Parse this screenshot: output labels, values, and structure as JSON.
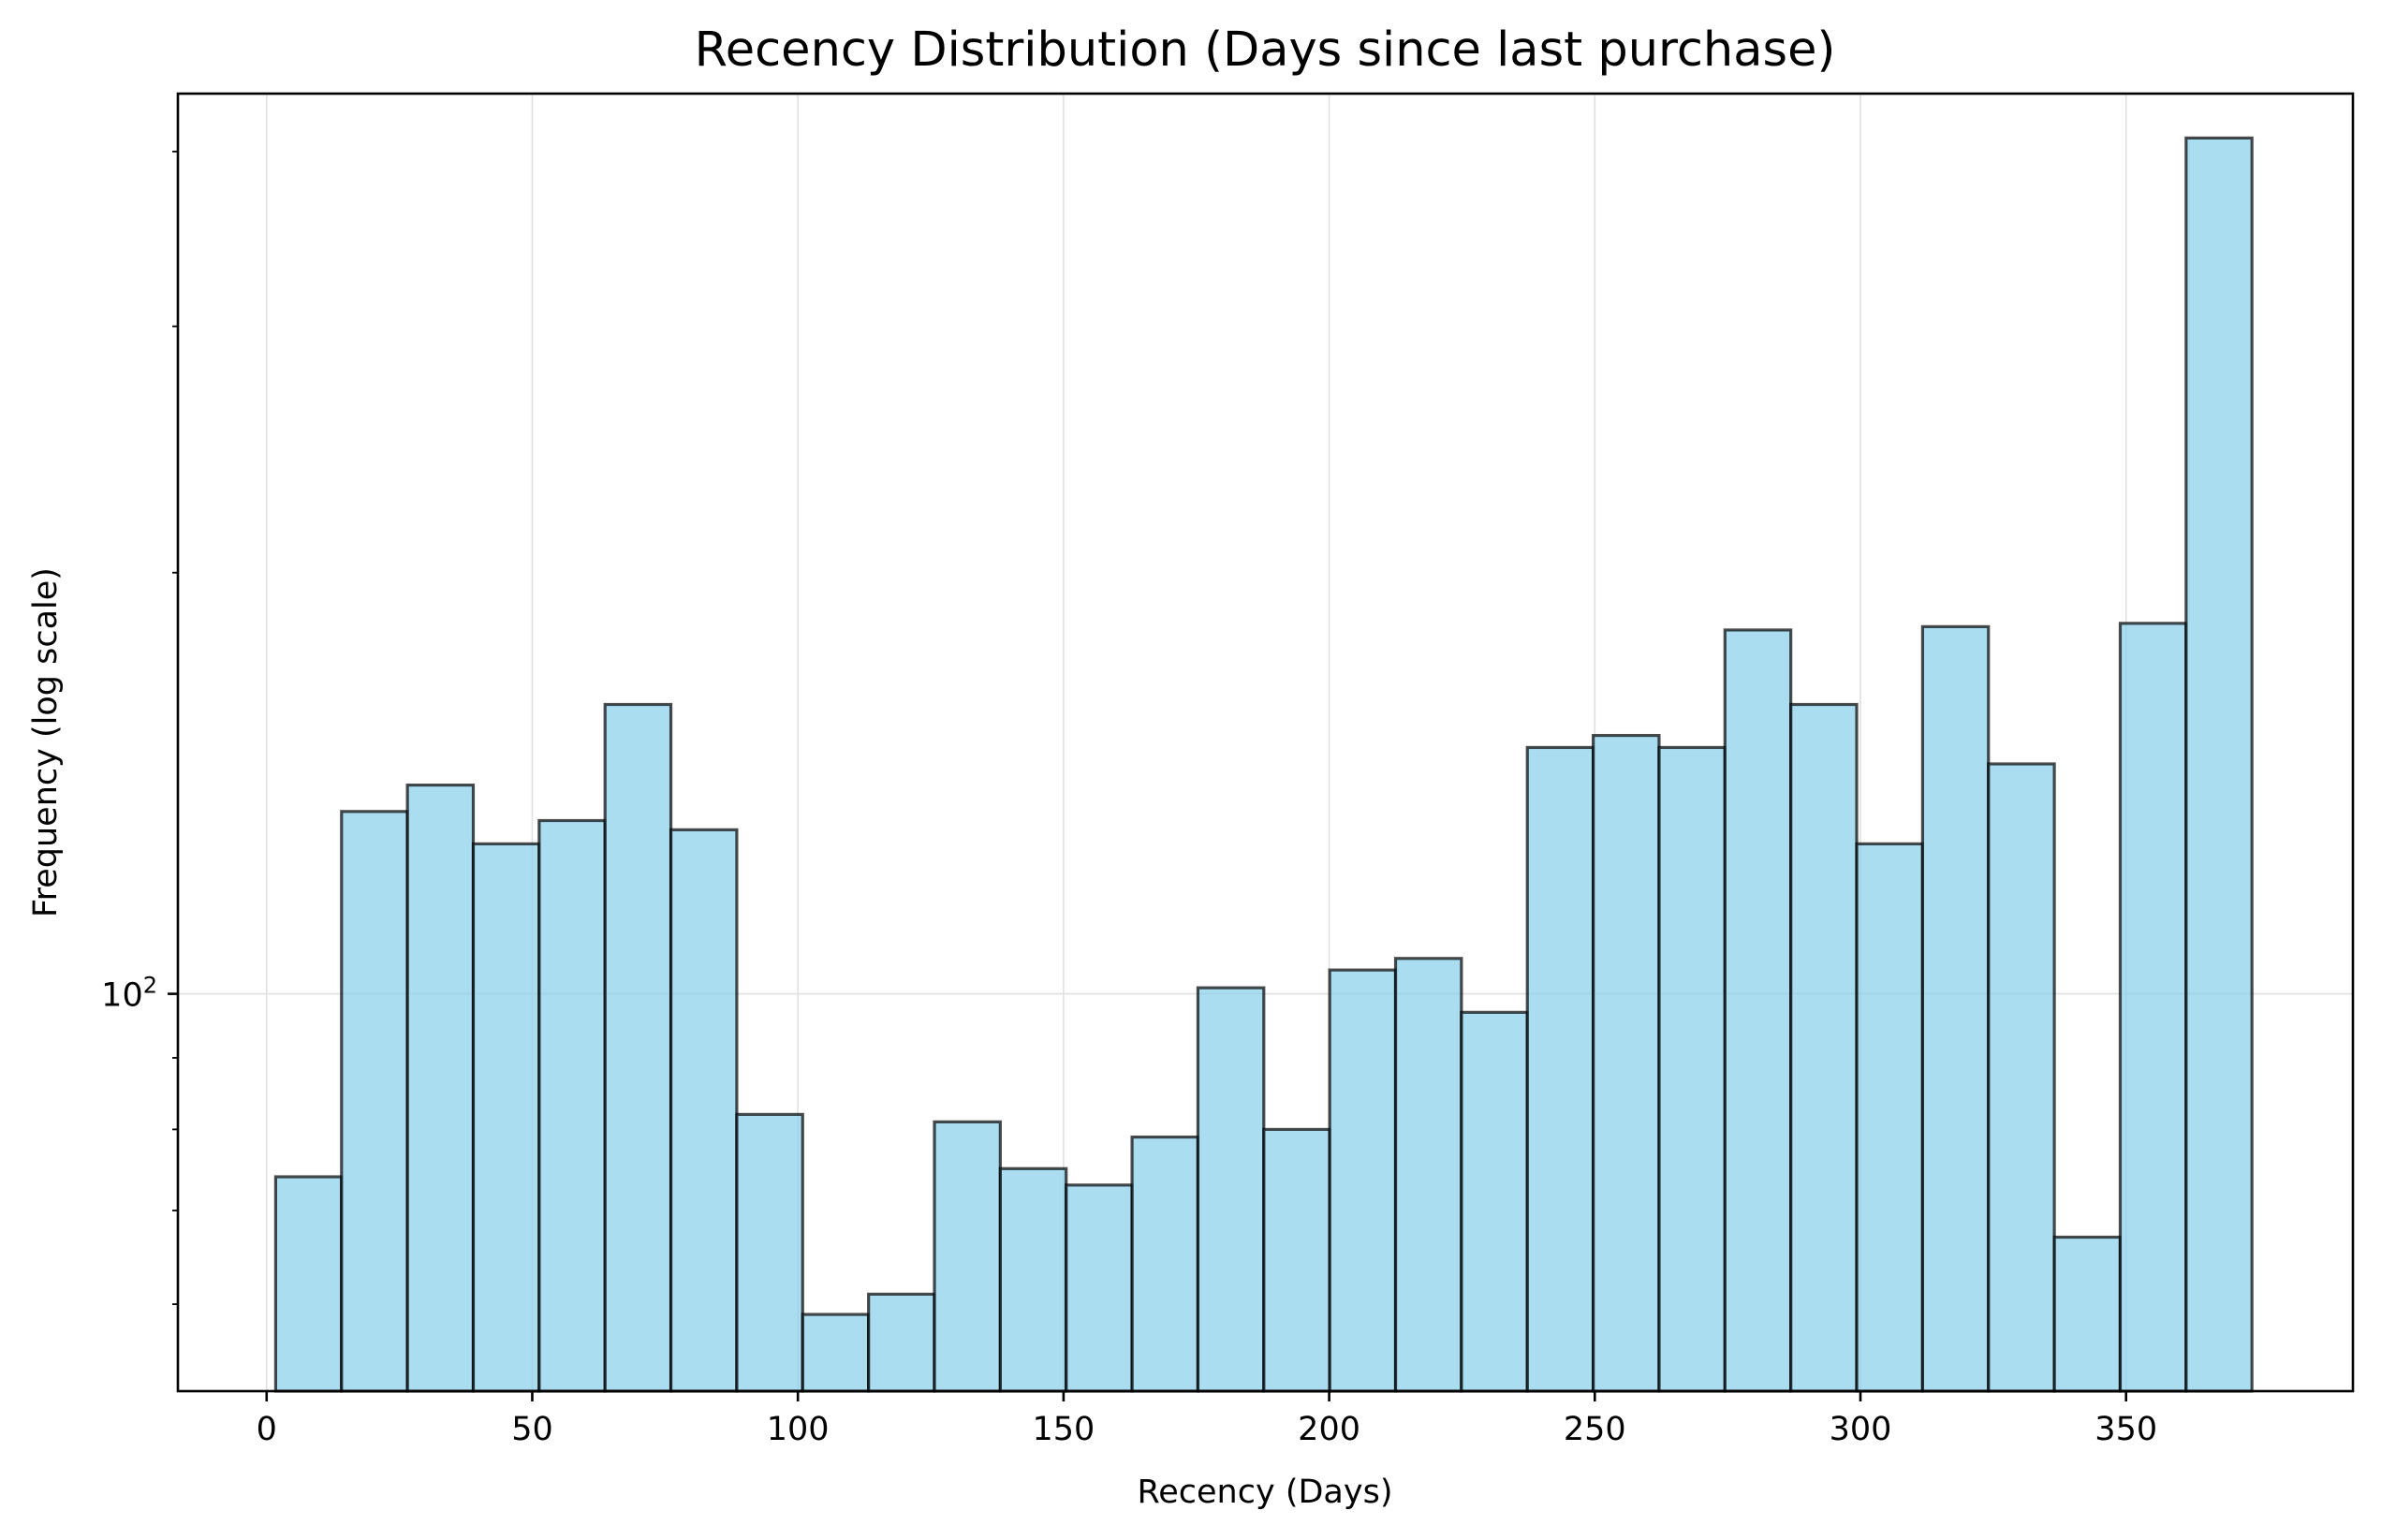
{
  "chart_data": {
    "type": "bar",
    "title": "Recency Distribution (Days since last purchase)",
    "xlabel": "Recency (Days)",
    "ylabel": "Frequency (log scale)",
    "y_scale": "log",
    "xlim": [
      -16.7,
      392.7
    ],
    "ylim": [
      52,
      440
    ],
    "x_ticks": [
      {
        "value": 0,
        "label": "0"
      },
      {
        "value": 50,
        "label": "50"
      },
      {
        "value": 100,
        "label": "100"
      },
      {
        "value": 150,
        "label": "150"
      },
      {
        "value": 200,
        "label": "200"
      },
      {
        "value": 250,
        "label": "250"
      },
      {
        "value": 300,
        "label": "300"
      },
      {
        "value": 350,
        "label": "350"
      }
    ],
    "y_ticks": [
      {
        "value": 100,
        "label_base": "10",
        "label_exp": "2"
      }
    ],
    "y_minor_ticks": [
      60,
      70,
      80,
      90,
      200,
      300,
      400
    ],
    "grid": true,
    "bar_color": "#87ceeb",
    "bar_edge_color": "#000000",
    "bin_edges": [
      1.7,
      14.1,
      26.5,
      38.9,
      51.3,
      63.7,
      76.1,
      88.5,
      100.9,
      113.3,
      125.7,
      138.1,
      150.5,
      162.9,
      175.3,
      187.7,
      200.1,
      212.5,
      224.9,
      237.3,
      249.7,
      262.1,
      274.5,
      286.9,
      299.3,
      311.7,
      324.1,
      336.5,
      348.9,
      361.3,
      373.7
    ],
    "values": [
      74,
      135,
      141,
      128,
      133,
      161,
      131,
      82,
      59,
      61,
      81,
      75,
      73,
      79,
      101,
      80,
      104,
      106,
      97,
      150,
      153,
      150,
      182,
      161,
      128,
      183,
      146,
      67,
      184,
      409
    ]
  }
}
